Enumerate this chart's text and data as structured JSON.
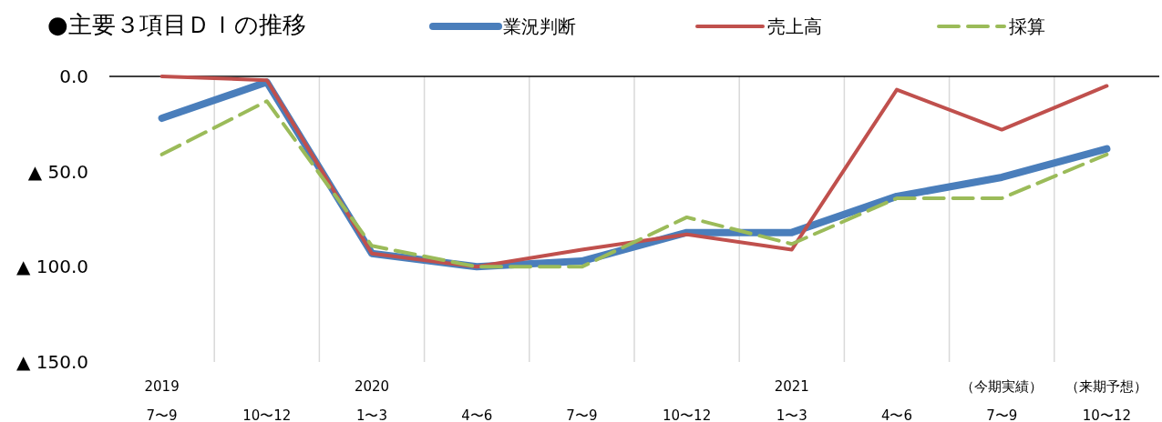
{
  "chart_data": {
    "type": "line",
    "title": "●主要３項目ＤＩの推移",
    "categories": [
      "2019\n7〜9",
      "10〜12",
      "2020\n1〜3",
      "4〜6",
      "7〜9",
      "10〜12",
      "2021\n1〜3",
      "4〜6",
      "（今期実績）\n7〜9",
      "（来期予想）\n10〜12"
    ],
    "series": [
      {
        "name": "業況判断",
        "color": "#4a7ebb",
        "line_style": "solid",
        "values": [
          -22,
          -3,
          -93,
          -100,
          -97,
          -82,
          -82,
          -63,
          -53,
          -38
        ]
      },
      {
        "name": "売上高",
        "color": "#c0504d",
        "line_style": "solid",
        "values": [
          0,
          -2,
          -93,
          -100,
          -91,
          -83,
          -91,
          -7,
          -28,
          -5
        ]
      },
      {
        "name": "採算",
        "color": "#9bbb59",
        "line_style": "dashed",
        "values": [
          -41,
          -13,
          -89,
          -100,
          -100,
          -74,
          -88,
          -64,
          -64,
          -41
        ]
      }
    ],
    "ylim": [
      -150,
      0
    ],
    "yticks": [
      {
        "value": 0,
        "label": "0.0"
      },
      {
        "value": -50,
        "label": "▲ 50.0"
      },
      {
        "value": -100,
        "label": "▲ 100.0"
      },
      {
        "value": -150,
        "label": "▲ 150.0"
      }
    ],
    "grid": "x",
    "legend": "top right",
    "marker": "none"
  }
}
